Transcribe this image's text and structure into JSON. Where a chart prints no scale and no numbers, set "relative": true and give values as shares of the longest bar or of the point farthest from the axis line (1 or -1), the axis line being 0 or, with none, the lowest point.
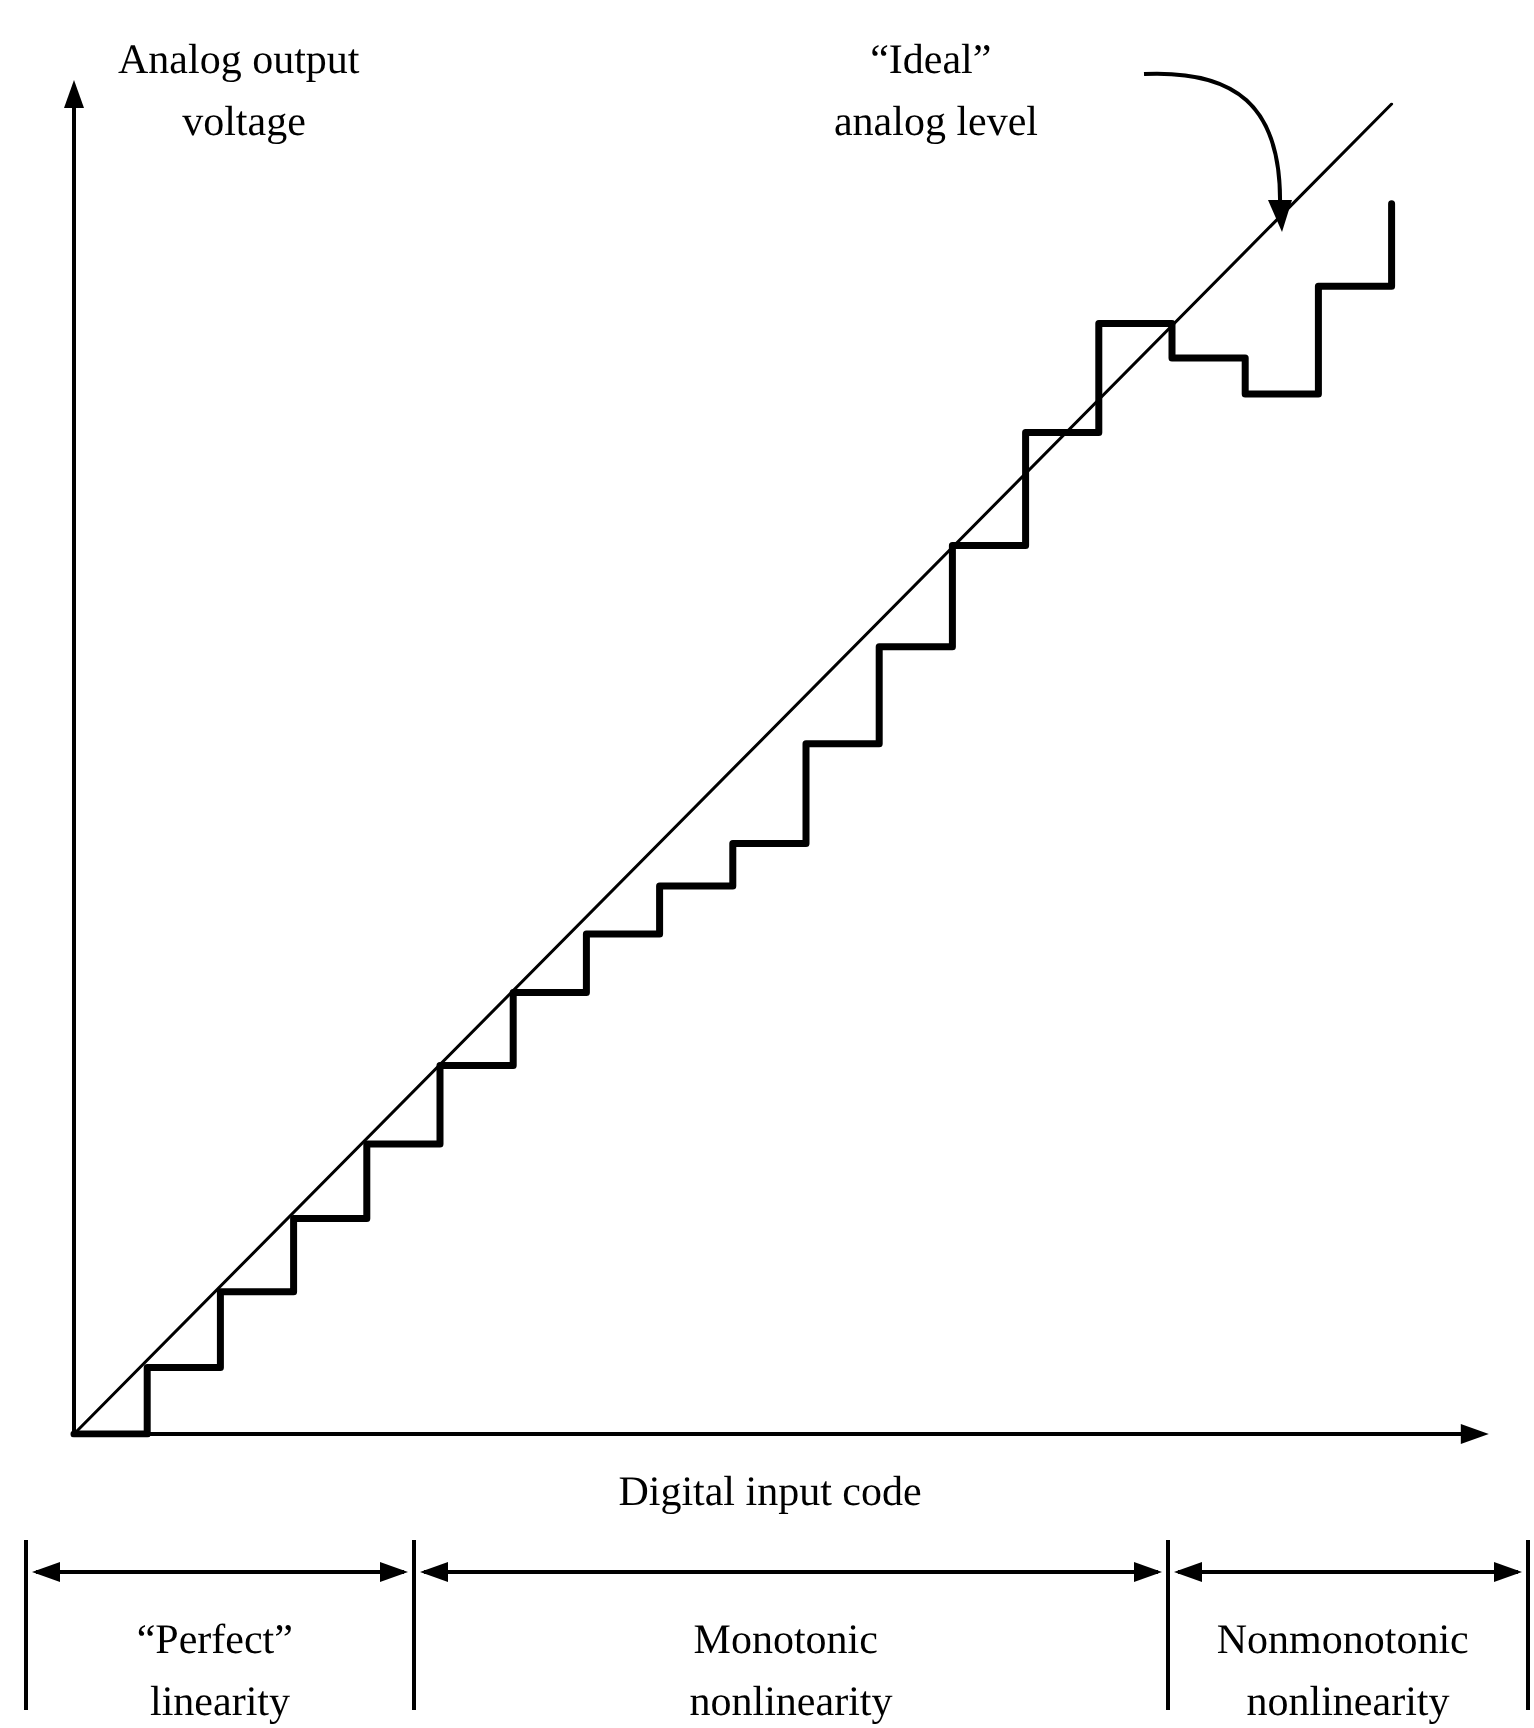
{
  "chart_data": {
    "type": "step",
    "relative": true,
    "xlabel": "Digital input code",
    "ylabel": "Analog output voltage",
    "marker": "none",
    "line_style": "solid",
    "categories": [
      null,
      null,
      null,
      null,
      null,
      null,
      null,
      null,
      null,
      null,
      null,
      null,
      null,
      null,
      null,
      null,
      null,
      null,
      null,
      null
    ],
    "series": [
      {
        "color": "#000000",
        "values": [
          0,
          0.05,
          0.107,
          0.162,
          0.218,
          0.277,
          0.332,
          0.376,
          0.412,
          0.444,
          0.519,
          0.592,
          0.668,
          0.753,
          0.835,
          0.809,
          0.782,
          0.863,
          0.925,
          null
        ]
      },
      {
        "type": "line",
        "color": "#000000",
        "values": [
          0,
          null,
          null,
          null,
          null,
          null,
          null,
          null,
          null,
          null,
          null,
          null,
          null,
          null,
          null,
          null,
          null,
          null,
          1,
          null
        ]
      }
    ],
    "annotations": [
      "“Ideal” analog level",
      "“Perfect” linearity",
      "Monotonic nonlinearity",
      "Nonmonotonic nonlinearity"
    ]
  }
}
